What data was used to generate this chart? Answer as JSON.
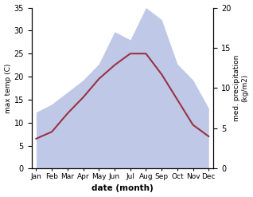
{
  "months": [
    "Jan",
    "Feb",
    "Mar",
    "Apr",
    "May",
    "Jun",
    "Jul",
    "Aug",
    "Sep",
    "Oct",
    "Nov",
    "Dec"
  ],
  "max_temp": [
    6.5,
    8.0,
    12.0,
    15.5,
    19.5,
    22.5,
    25.0,
    25.0,
    20.5,
    15.0,
    9.5,
    7.0
  ],
  "precipitation": [
    7.0,
    8.0,
    9.5,
    11.0,
    13.0,
    17.0,
    16.0,
    20.0,
    18.5,
    13.0,
    11.0,
    7.5
  ],
  "temp_color": "#993344",
  "precip_fill_color": "#c0c8e8",
  "xlabel": "date (month)",
  "ylabel_left": "max temp (C)",
  "ylabel_right": "med. precipitation\n(kg/m2)",
  "ylim_left": [
    0,
    35
  ],
  "ylim_right": [
    0,
    20
  ],
  "yticks_left": [
    0,
    5,
    10,
    15,
    20,
    25,
    30,
    35
  ],
  "yticks_right": [
    0,
    5,
    10,
    15,
    20
  ],
  "background_color": "#ffffff"
}
